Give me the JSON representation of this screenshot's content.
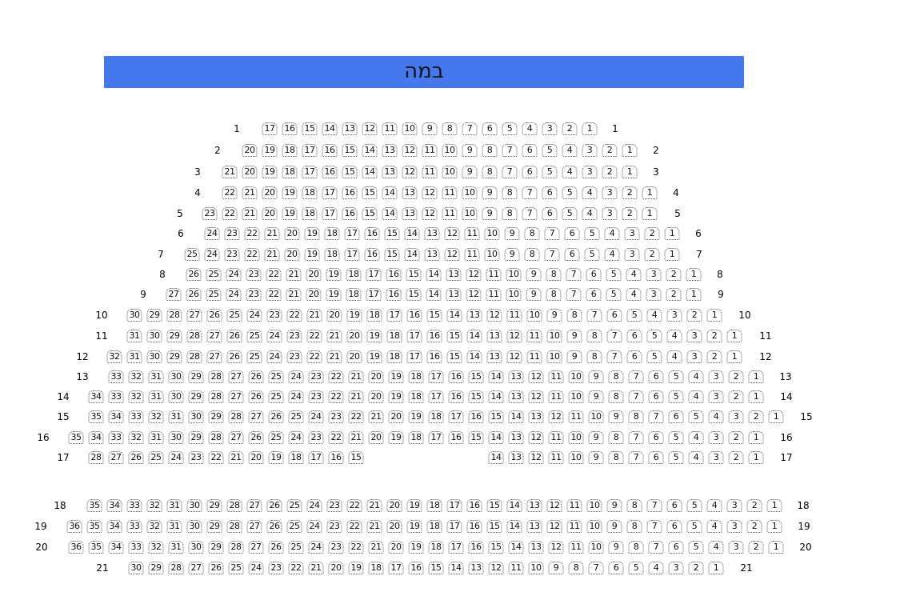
{
  "stage": {
    "label": "במה",
    "color": "#4479ed"
  },
  "rows": [
    {
      "row": "1",
      "seats": [
        [
          17,
          1
        ]
      ]
    },
    {
      "row": "2",
      "seats": [
        [
          20,
          1
        ]
      ]
    },
    {
      "row": "3",
      "seats": [
        [
          21,
          1
        ]
      ]
    },
    {
      "row": "4",
      "seats": [
        [
          22,
          1
        ]
      ]
    },
    {
      "row": "5",
      "seats": [
        [
          23,
          1
        ]
      ]
    },
    {
      "row": "6",
      "seats": [
        [
          24,
          1
        ]
      ]
    },
    {
      "row": "7",
      "seats": [
        [
          25,
          1
        ]
      ]
    },
    {
      "row": "8",
      "seats": [
        [
          26,
          1
        ]
      ]
    },
    {
      "row": "9",
      "seats": [
        [
          27,
          1
        ]
      ]
    },
    {
      "row": "10",
      "seats": [
        [
          30,
          1
        ]
      ]
    },
    {
      "row": "11",
      "seats": [
        [
          31,
          1
        ]
      ]
    },
    {
      "row": "12",
      "seats": [
        [
          32,
          1
        ]
      ]
    },
    {
      "row": "13",
      "seats": [
        [
          33,
          1
        ]
      ]
    },
    {
      "row": "14",
      "seats": [
        [
          34,
          1
        ]
      ]
    },
    {
      "row": "15",
      "seats": [
        [
          35,
          1
        ]
      ]
    },
    {
      "row": "16",
      "seats": [
        [
          35,
          1
        ]
      ]
    },
    {
      "row": "17",
      "seats": [
        [
          28,
          15
        ],
        [
          14,
          1
        ]
      ]
    },
    {
      "row": "18",
      "seats": [
        [
          35,
          1
        ]
      ]
    },
    {
      "row": "19",
      "seats": [
        [
          36,
          1
        ]
      ]
    },
    {
      "row": "20",
      "seats": [
        [
          36,
          1
        ]
      ]
    },
    {
      "row": "21",
      "seats": [
        [
          30,
          1
        ]
      ]
    }
  ]
}
